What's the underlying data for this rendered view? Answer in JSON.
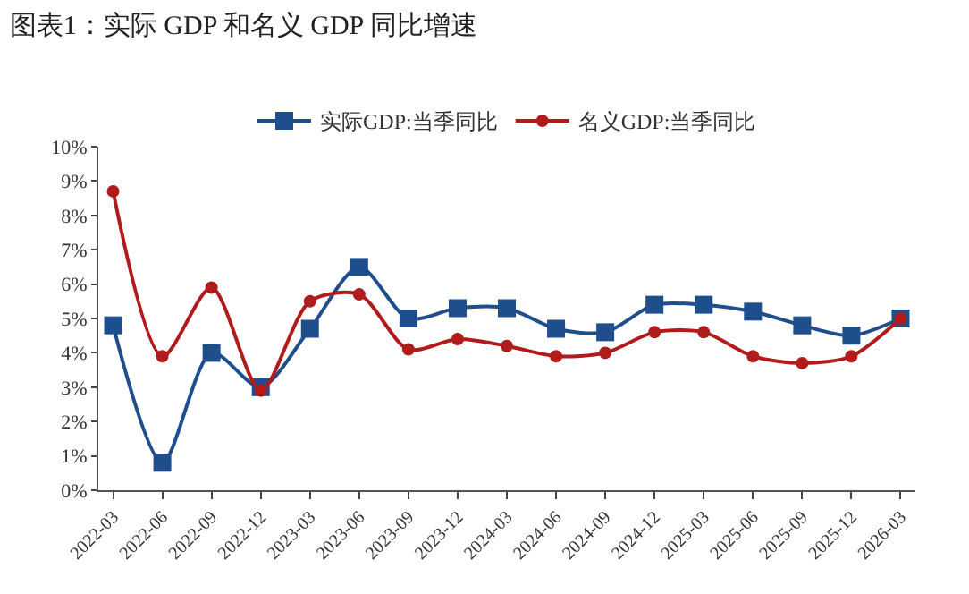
{
  "chart_data": {
    "type": "line",
    "title": "图表1：实际 GDP 和名义 GDP 同比增速",
    "categories": [
      "2022-03",
      "2022-06",
      "2022-09",
      "2022-12",
      "2023-03",
      "2023-06",
      "2023-09",
      "2023-12",
      "2024-03",
      "2024-06",
      "2024-09",
      "2024-12",
      "2025-03",
      "2025-06",
      "2025-09",
      "2025-12",
      "2026-03"
    ],
    "series": [
      {
        "name": "实际GDP:当季同比",
        "color": "#1f4e8c",
        "marker": "square",
        "values": [
          4.8,
          0.8,
          4.0,
          3.0,
          4.7,
          6.5,
          5.0,
          5.3,
          5.3,
          4.7,
          4.6,
          5.4,
          5.4,
          5.2,
          4.8,
          4.5,
          5.0
        ]
      },
      {
        "name": "名义GDP:当季同比",
        "color": "#b01c1c",
        "marker": "circle",
        "values": [
          8.7,
          3.9,
          5.9,
          2.9,
          5.5,
          5.7,
          4.1,
          4.4,
          4.2,
          3.9,
          4.0,
          4.6,
          4.6,
          3.9,
          3.7,
          3.9,
          5.0
        ]
      }
    ],
    "ylim": [
      0,
      10
    ],
    "yticks": [
      {
        "value": 0,
        "label": "0%"
      },
      {
        "value": 1,
        "label": "1%"
      },
      {
        "value": 2,
        "label": "2%"
      },
      {
        "value": 3,
        "label": "3%"
      },
      {
        "value": 4,
        "label": "4%"
      },
      {
        "value": 5,
        "label": "5%"
      },
      {
        "value": 6,
        "label": "6%"
      },
      {
        "value": 7,
        "label": "7%"
      },
      {
        "value": 8,
        "label": "8%"
      },
      {
        "value": 9,
        "label": "9%"
      },
      {
        "value": 10,
        "label": "10%"
      }
    ],
    "grid": false,
    "legend": "top",
    "line_style": "solid"
  }
}
